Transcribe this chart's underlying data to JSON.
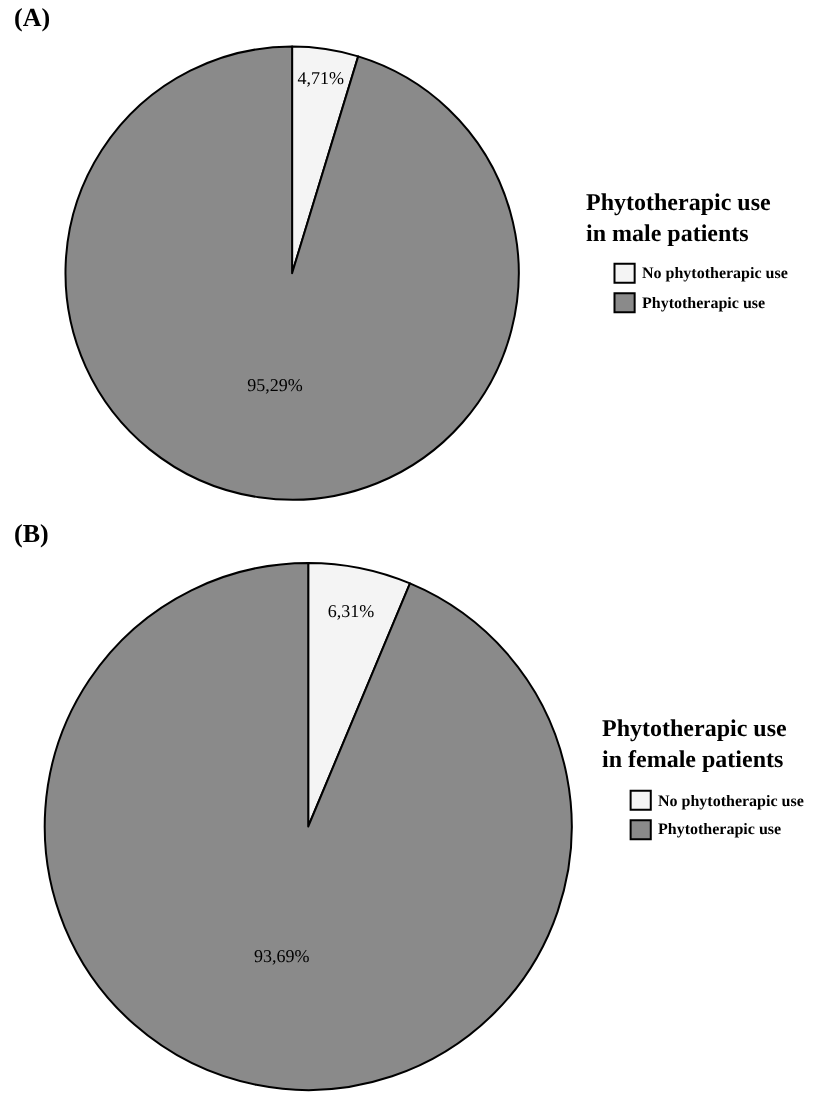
{
  "chart_data": [
    {
      "type": "pie",
      "title": "(A)",
      "legend_title": "Phytotherapic use in male patients",
      "categories": [
        "No phytotherapic use",
        "Phytotherapic use"
      ],
      "values": [
        4.71,
        95.29
      ],
      "value_labels": [
        "4,71%",
        "95,29%"
      ],
      "colors": [
        "#f4f4f4",
        "#8a8a8a"
      ],
      "legend": "right"
    },
    {
      "type": "pie",
      "title": "(B)",
      "legend_title": "Phytotherapic use in female patients",
      "categories": [
        "No phytotherapic use",
        "Phytotherapic use"
      ],
      "values": [
        6.31,
        93.69
      ],
      "value_labels": [
        "6,31%",
        "93,69%"
      ],
      "colors": [
        "#f4f4f4",
        "#8a8a8a"
      ],
      "legend": "right"
    }
  ]
}
